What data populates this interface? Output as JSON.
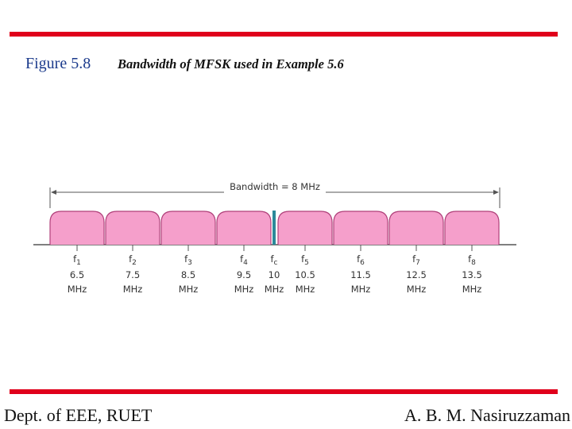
{
  "header": {
    "figure_label": "Figure 5.8",
    "caption": "Bandwidth of MFSK used in Example 5.6"
  },
  "diagram": {
    "bandwidth_label": "Bandwidth = 8 MHz",
    "carriers": [
      {
        "symbol": "f",
        "subscript": "1",
        "frequency": "6.5",
        "unit": "MHz"
      },
      {
        "symbol": "f",
        "subscript": "2",
        "frequency": "7.5",
        "unit": "MHz"
      },
      {
        "symbol": "f",
        "subscript": "3",
        "frequency": "8.5",
        "unit": "MHz"
      },
      {
        "symbol": "f",
        "subscript": "4",
        "frequency": "9.5",
        "unit": "MHz"
      },
      {
        "symbol": "f",
        "subscript": "5",
        "frequency": "10.5",
        "unit": "MHz"
      },
      {
        "symbol": "f",
        "subscript": "6",
        "frequency": "11.5",
        "unit": "MHz"
      },
      {
        "symbol": "f",
        "subscript": "7",
        "frequency": "12.5",
        "unit": "MHz"
      },
      {
        "symbol": "f",
        "subscript": "8",
        "frequency": "13.5",
        "unit": "MHz"
      }
    ],
    "center": {
      "symbol": "f",
      "subscript": "c",
      "frequency": "10",
      "unit": "MHz"
    }
  },
  "footer": {
    "left": "Dept. of EEE, RUET",
    "right": "A. B. M. Nasiruzzaman"
  }
}
